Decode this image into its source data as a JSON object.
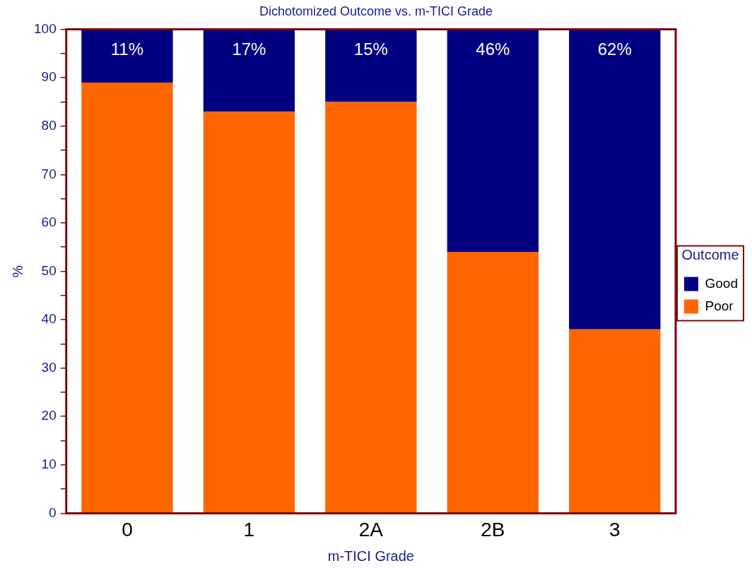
{
  "chart_data": {
    "type": "bar",
    "title": "Dichotomized Outcome vs. m-TICI Grade",
    "xlabel": "m-TICI Grade",
    "ylabel": "%",
    "legend_title": "Outcome",
    "categories": [
      "0",
      "1",
      "2A",
      "2B",
      "3"
    ],
    "stacked": true,
    "legend": "right",
    "grid": false,
    "series": [
      {
        "name": "Poor",
        "color": "#ff6600",
        "values": [
          89,
          83,
          85,
          54,
          38
        ]
      },
      {
        "name": "Good",
        "color": "#000080",
        "values": [
          11,
          17,
          15,
          46,
          62
        ],
        "value_labels": [
          "11%",
          "17%",
          "15%",
          "46%",
          "62%"
        ]
      }
    ],
    "ylim": [
      0,
      100
    ],
    "yticks": [
      0,
      {
        "value": 5,
        "label": null
      },
      10,
      {
        "value": 15,
        "label": null
      },
      20,
      {
        "value": 25,
        "label": null
      },
      30,
      {
        "value": 35,
        "label": null
      },
      40,
      {
        "value": 45,
        "label": null
      },
      50,
      {
        "value": 55,
        "label": null
      },
      60,
      {
        "value": 65,
        "label": null
      },
      70,
      {
        "value": 75,
        "label": null
      },
      80,
      {
        "value": 85,
        "label": null
      },
      90,
      {
        "value": 95,
        "label": null
      },
      100
    ]
  }
}
